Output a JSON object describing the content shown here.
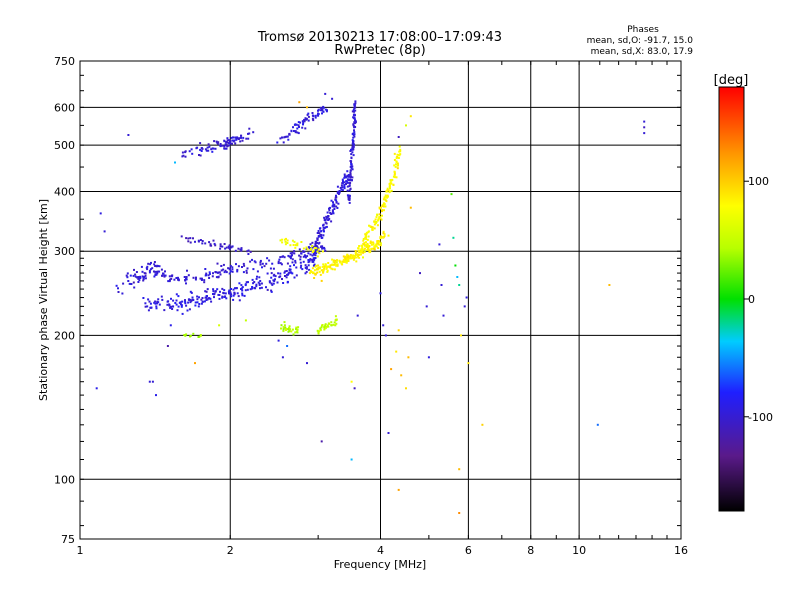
{
  "chart_data": {
    "type": "scatter",
    "title": "Tromsø 20130213 17:08:00–17:09:43",
    "subtitle": "RwPretec (8p)",
    "xlabel": "Frequency [MHz]",
    "ylabel": "Stationary phase Virtual Height [km]",
    "x_scale": "log",
    "y_scale": "log",
    "xlim": [
      1,
      16
    ],
    "ylim": [
      75,
      750
    ],
    "x_ticks": [
      1,
      2,
      4,
      6,
      8,
      10,
      16
    ],
    "x_tick_labels": [
      "1",
      "2",
      "4",
      "6",
      "8",
      "10",
      "16"
    ],
    "y_ticks": [
      75,
      100,
      200,
      300,
      400,
      500,
      600,
      750
    ],
    "y_tick_labels": [
      "75",
      "100",
      "200",
      "300",
      "400",
      "500",
      "600",
      "750"
    ],
    "grid": true,
    "stats": {
      "title": "Phases",
      "line_o": "mean, sd,O: -91.7, 15.0",
      "line_x": "mean, sd,X: 83.0, 17.9"
    },
    "colorbar": {
      "label": "[deg]",
      "range": [
        -180,
        180
      ],
      "ticks": [
        100,
        0,
        -100
      ],
      "tick_labels": [
        "100",
        "0",
        "-100"
      ]
    },
    "clusters": [
      {
        "name": "o-low-ridge",
        "phase": -95,
        "pts": [
          [
            1.35,
            235
          ],
          [
            1.5,
            232
          ],
          [
            1.65,
            235
          ],
          [
            1.8,
            240
          ],
          [
            2.0,
            245
          ],
          [
            2.2,
            252
          ],
          [
            2.4,
            260
          ],
          [
            2.6,
            270
          ],
          [
            2.8,
            280
          ],
          [
            2.95,
            290
          ]
        ],
        "spread": 0.06,
        "n": 260
      },
      {
        "name": "o-upper-band",
        "phase": -100,
        "pts": [
          [
            1.25,
            265
          ],
          [
            1.4,
            270
          ],
          [
            1.6,
            262
          ],
          [
            1.8,
            268
          ],
          [
            2.0,
            275
          ],
          [
            2.3,
            282
          ],
          [
            2.6,
            290
          ],
          [
            2.9,
            300
          ],
          [
            3.1,
            310
          ]
        ],
        "spread": 0.05,
        "n": 200
      },
      {
        "name": "o-rise",
        "phase": -98,
        "pts": [
          [
            2.9,
            290
          ],
          [
            3.05,
            330
          ],
          [
            3.2,
            370
          ],
          [
            3.35,
            410
          ],
          [
            3.5,
            440
          ]
        ],
        "spread": 0.04,
        "n": 140
      },
      {
        "name": "o-cusp",
        "phase": -100,
        "pts": [
          [
            3.45,
            380
          ],
          [
            3.5,
            440
          ],
          [
            3.52,
            500
          ],
          [
            3.55,
            560
          ],
          [
            3.55,
            620
          ]
        ],
        "spread": 0.02,
        "n": 110
      },
      {
        "name": "o-band-300",
        "phase": -105,
        "pts": [
          [
            1.6,
            320
          ],
          [
            1.8,
            312
          ],
          [
            2.0,
            305
          ],
          [
            2.2,
            300
          ]
        ],
        "spread": 0.025,
        "n": 45
      },
      {
        "name": "o-upper-left",
        "phase": -100,
        "pts": [
          [
            1.6,
            475
          ],
          [
            1.75,
            490
          ],
          [
            1.9,
            500
          ],
          [
            2.05,
            515
          ],
          [
            2.2,
            530
          ]
        ],
        "spread": 0.04,
        "n": 90
      },
      {
        "name": "o-upper-mid",
        "phase": -98,
        "pts": [
          [
            2.5,
            510
          ],
          [
            2.65,
            530
          ],
          [
            2.8,
            555
          ],
          [
            2.95,
            580
          ],
          [
            3.1,
            600
          ]
        ],
        "spread": 0.035,
        "n": 70
      },
      {
        "name": "o-left-drift",
        "phase": -100,
        "pts": [
          [
            1.2,
            250
          ],
          [
            1.3,
            265
          ],
          [
            1.4,
            280
          ],
          [
            1.5,
            265
          ]
        ],
        "spread": 0.06,
        "n": 40
      },
      {
        "name": "x-ridge",
        "phase": 85,
        "pts": [
          [
            2.9,
            270
          ],
          [
            3.1,
            278
          ],
          [
            3.3,
            285
          ],
          [
            3.5,
            292
          ],
          [
            3.7,
            300
          ],
          [
            3.9,
            310
          ],
          [
            4.1,
            325
          ]
        ],
        "spread": 0.035,
        "n": 210
      },
      {
        "name": "x-rise",
        "phase": 82,
        "pts": [
          [
            3.6,
            300
          ],
          [
            3.8,
            330
          ],
          [
            4.0,
            360
          ],
          [
            4.15,
            400
          ],
          [
            4.3,
            450
          ],
          [
            4.35,
            490
          ]
        ],
        "spread": 0.035,
        "n": 140
      },
      {
        "name": "x-band-300",
        "phase": 75,
        "pts": [
          [
            2.5,
            315
          ],
          [
            2.7,
            310
          ],
          [
            2.9,
            302
          ],
          [
            3.1,
            298
          ]
        ],
        "spread": 0.03,
        "n": 35
      },
      {
        "name": "x-low-left",
        "phase": 45,
        "pts": [
          [
            2.55,
            210
          ],
          [
            2.65,
            205
          ],
          [
            2.75,
            205
          ]
        ],
        "spread": 0.03,
        "n": 30
      },
      {
        "name": "x-low-right",
        "phase": 50,
        "pts": [
          [
            3.0,
            205
          ],
          [
            3.15,
            210
          ],
          [
            3.3,
            215
          ]
        ],
        "spread": 0.03,
        "n": 35
      },
      {
        "name": "x-low-far-left",
        "phase": 45,
        "pts": [
          [
            1.6,
            200
          ],
          [
            1.75,
            200
          ]
        ],
        "spread": 0.015,
        "n": 10
      }
    ],
    "points": [
      [
        1.08,
        155,
        -90
      ],
      [
        1.1,
        360,
        -95
      ],
      [
        1.12,
        330,
        -100
      ],
      [
        1.25,
        525,
        -100
      ],
      [
        1.4,
        160,
        -100
      ],
      [
        1.38,
        160,
        -100
      ],
      [
        1.42,
        150,
        -90
      ],
      [
        1.5,
        190,
        -120
      ],
      [
        1.52,
        210,
        -90
      ],
      [
        1.55,
        460,
        -40
      ],
      [
        1.7,
        175,
        120
      ],
      [
        1.9,
        210,
        60
      ],
      [
        2.15,
        215,
        50
      ],
      [
        2.5,
        195,
        -95
      ],
      [
        2.55,
        180,
        -100
      ],
      [
        2.6,
        190,
        -60
      ],
      [
        2.85,
        175,
        -100
      ],
      [
        3.05,
        120,
        -120
      ],
      [
        3.05,
        260,
        100
      ],
      [
        3.5,
        110,
        -40
      ],
      [
        3.5,
        160,
        80
      ],
      [
        3.55,
        155,
        -110
      ],
      [
        3.6,
        220,
        -100
      ],
      [
        4.0,
        245,
        -95
      ],
      [
        4.1,
        200,
        -100
      ],
      [
        4.15,
        125,
        -100
      ],
      [
        4.2,
        170,
        120
      ],
      [
        4.3,
        185,
        90
      ],
      [
        4.35,
        520,
        -110
      ],
      [
        4.35,
        205,
        100
      ],
      [
        4.4,
        165,
        110
      ],
      [
        4.5,
        155,
        95
      ],
      [
        4.5,
        550,
        60
      ],
      [
        4.55,
        180,
        110
      ],
      [
        4.6,
        575,
        90
      ],
      [
        4.6,
        370,
        110
      ],
      [
        4.8,
        270,
        -110
      ],
      [
        4.95,
        230,
        -100
      ],
      [
        5.0,
        180,
        -95
      ],
      [
        5.25,
        310,
        -100
      ],
      [
        5.3,
        255,
        -100
      ],
      [
        5.35,
        220,
        -100
      ],
      [
        5.55,
        395,
        20
      ],
      [
        5.6,
        320,
        -20
      ],
      [
        5.65,
        280,
        0
      ],
      [
        5.7,
        265,
        -40
      ],
      [
        5.75,
        255,
        -20
      ],
      [
        5.75,
        105,
        110
      ],
      [
        5.75,
        85,
        130
      ],
      [
        5.8,
        200,
        90
      ],
      [
        5.9,
        230,
        -100
      ],
      [
        5.95,
        240,
        -95
      ],
      [
        6.0,
        175,
        90
      ],
      [
        6.4,
        130,
        100
      ],
      [
        10.9,
        130,
        -60
      ],
      [
        11.5,
        255,
        110
      ],
      [
        13.5,
        560,
        -100
      ],
      [
        13.5,
        545,
        -110
      ],
      [
        13.5,
        530,
        -100
      ],
      [
        2.75,
        615,
        120
      ],
      [
        2.85,
        600,
        110
      ],
      [
        3.1,
        640,
        -100
      ],
      [
        3.2,
        625,
        -100
      ],
      [
        4.35,
        95,
        120
      ],
      [
        4.05,
        210,
        -100
      ]
    ]
  }
}
